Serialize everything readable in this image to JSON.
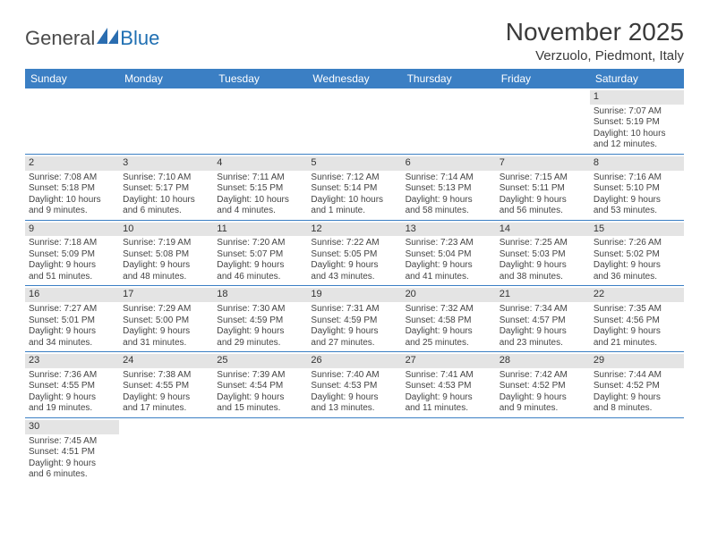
{
  "logo": {
    "text1": "General",
    "text2": "Blue"
  },
  "title": "November 2025",
  "location": "Verzuolo, Piedmont, Italy",
  "colors": {
    "header_bg": "#3b7fc4",
    "header_text": "#ffffff",
    "daynum_bg": "#e4e4e4",
    "border": "#3b7fc4",
    "text": "#444444"
  },
  "day_names": [
    "Sunday",
    "Monday",
    "Tuesday",
    "Wednesday",
    "Thursday",
    "Friday",
    "Saturday"
  ],
  "weeks": [
    [
      null,
      null,
      null,
      null,
      null,
      null,
      {
        "n": "1",
        "sunrise": "Sunrise: 7:07 AM",
        "sunset": "Sunset: 5:19 PM",
        "d1": "Daylight: 10 hours",
        "d2": "and 12 minutes."
      }
    ],
    [
      {
        "n": "2",
        "sunrise": "Sunrise: 7:08 AM",
        "sunset": "Sunset: 5:18 PM",
        "d1": "Daylight: 10 hours",
        "d2": "and 9 minutes."
      },
      {
        "n": "3",
        "sunrise": "Sunrise: 7:10 AM",
        "sunset": "Sunset: 5:17 PM",
        "d1": "Daylight: 10 hours",
        "d2": "and 6 minutes."
      },
      {
        "n": "4",
        "sunrise": "Sunrise: 7:11 AM",
        "sunset": "Sunset: 5:15 PM",
        "d1": "Daylight: 10 hours",
        "d2": "and 4 minutes."
      },
      {
        "n": "5",
        "sunrise": "Sunrise: 7:12 AM",
        "sunset": "Sunset: 5:14 PM",
        "d1": "Daylight: 10 hours",
        "d2": "and 1 minute."
      },
      {
        "n": "6",
        "sunrise": "Sunrise: 7:14 AM",
        "sunset": "Sunset: 5:13 PM",
        "d1": "Daylight: 9 hours",
        "d2": "and 58 minutes."
      },
      {
        "n": "7",
        "sunrise": "Sunrise: 7:15 AM",
        "sunset": "Sunset: 5:11 PM",
        "d1": "Daylight: 9 hours",
        "d2": "and 56 minutes."
      },
      {
        "n": "8",
        "sunrise": "Sunrise: 7:16 AM",
        "sunset": "Sunset: 5:10 PM",
        "d1": "Daylight: 9 hours",
        "d2": "and 53 minutes."
      }
    ],
    [
      {
        "n": "9",
        "sunrise": "Sunrise: 7:18 AM",
        "sunset": "Sunset: 5:09 PM",
        "d1": "Daylight: 9 hours",
        "d2": "and 51 minutes."
      },
      {
        "n": "10",
        "sunrise": "Sunrise: 7:19 AM",
        "sunset": "Sunset: 5:08 PM",
        "d1": "Daylight: 9 hours",
        "d2": "and 48 minutes."
      },
      {
        "n": "11",
        "sunrise": "Sunrise: 7:20 AM",
        "sunset": "Sunset: 5:07 PM",
        "d1": "Daylight: 9 hours",
        "d2": "and 46 minutes."
      },
      {
        "n": "12",
        "sunrise": "Sunrise: 7:22 AM",
        "sunset": "Sunset: 5:05 PM",
        "d1": "Daylight: 9 hours",
        "d2": "and 43 minutes."
      },
      {
        "n": "13",
        "sunrise": "Sunrise: 7:23 AM",
        "sunset": "Sunset: 5:04 PM",
        "d1": "Daylight: 9 hours",
        "d2": "and 41 minutes."
      },
      {
        "n": "14",
        "sunrise": "Sunrise: 7:25 AM",
        "sunset": "Sunset: 5:03 PM",
        "d1": "Daylight: 9 hours",
        "d2": "and 38 minutes."
      },
      {
        "n": "15",
        "sunrise": "Sunrise: 7:26 AM",
        "sunset": "Sunset: 5:02 PM",
        "d1": "Daylight: 9 hours",
        "d2": "and 36 minutes."
      }
    ],
    [
      {
        "n": "16",
        "sunrise": "Sunrise: 7:27 AM",
        "sunset": "Sunset: 5:01 PM",
        "d1": "Daylight: 9 hours",
        "d2": "and 34 minutes."
      },
      {
        "n": "17",
        "sunrise": "Sunrise: 7:29 AM",
        "sunset": "Sunset: 5:00 PM",
        "d1": "Daylight: 9 hours",
        "d2": "and 31 minutes."
      },
      {
        "n": "18",
        "sunrise": "Sunrise: 7:30 AM",
        "sunset": "Sunset: 4:59 PM",
        "d1": "Daylight: 9 hours",
        "d2": "and 29 minutes."
      },
      {
        "n": "19",
        "sunrise": "Sunrise: 7:31 AM",
        "sunset": "Sunset: 4:59 PM",
        "d1": "Daylight: 9 hours",
        "d2": "and 27 minutes."
      },
      {
        "n": "20",
        "sunrise": "Sunrise: 7:32 AM",
        "sunset": "Sunset: 4:58 PM",
        "d1": "Daylight: 9 hours",
        "d2": "and 25 minutes."
      },
      {
        "n": "21",
        "sunrise": "Sunrise: 7:34 AM",
        "sunset": "Sunset: 4:57 PM",
        "d1": "Daylight: 9 hours",
        "d2": "and 23 minutes."
      },
      {
        "n": "22",
        "sunrise": "Sunrise: 7:35 AM",
        "sunset": "Sunset: 4:56 PM",
        "d1": "Daylight: 9 hours",
        "d2": "and 21 minutes."
      }
    ],
    [
      {
        "n": "23",
        "sunrise": "Sunrise: 7:36 AM",
        "sunset": "Sunset: 4:55 PM",
        "d1": "Daylight: 9 hours",
        "d2": "and 19 minutes."
      },
      {
        "n": "24",
        "sunrise": "Sunrise: 7:38 AM",
        "sunset": "Sunset: 4:55 PM",
        "d1": "Daylight: 9 hours",
        "d2": "and 17 minutes."
      },
      {
        "n": "25",
        "sunrise": "Sunrise: 7:39 AM",
        "sunset": "Sunset: 4:54 PM",
        "d1": "Daylight: 9 hours",
        "d2": "and 15 minutes."
      },
      {
        "n": "26",
        "sunrise": "Sunrise: 7:40 AM",
        "sunset": "Sunset: 4:53 PM",
        "d1": "Daylight: 9 hours",
        "d2": "and 13 minutes."
      },
      {
        "n": "27",
        "sunrise": "Sunrise: 7:41 AM",
        "sunset": "Sunset: 4:53 PM",
        "d1": "Daylight: 9 hours",
        "d2": "and 11 minutes."
      },
      {
        "n": "28",
        "sunrise": "Sunrise: 7:42 AM",
        "sunset": "Sunset: 4:52 PM",
        "d1": "Daylight: 9 hours",
        "d2": "and 9 minutes."
      },
      {
        "n": "29",
        "sunrise": "Sunrise: 7:44 AM",
        "sunset": "Sunset: 4:52 PM",
        "d1": "Daylight: 9 hours",
        "d2": "and 8 minutes."
      }
    ],
    [
      {
        "n": "30",
        "sunrise": "Sunrise: 7:45 AM",
        "sunset": "Sunset: 4:51 PM",
        "d1": "Daylight: 9 hours",
        "d2": "and 6 minutes."
      },
      null,
      null,
      null,
      null,
      null,
      null
    ]
  ]
}
